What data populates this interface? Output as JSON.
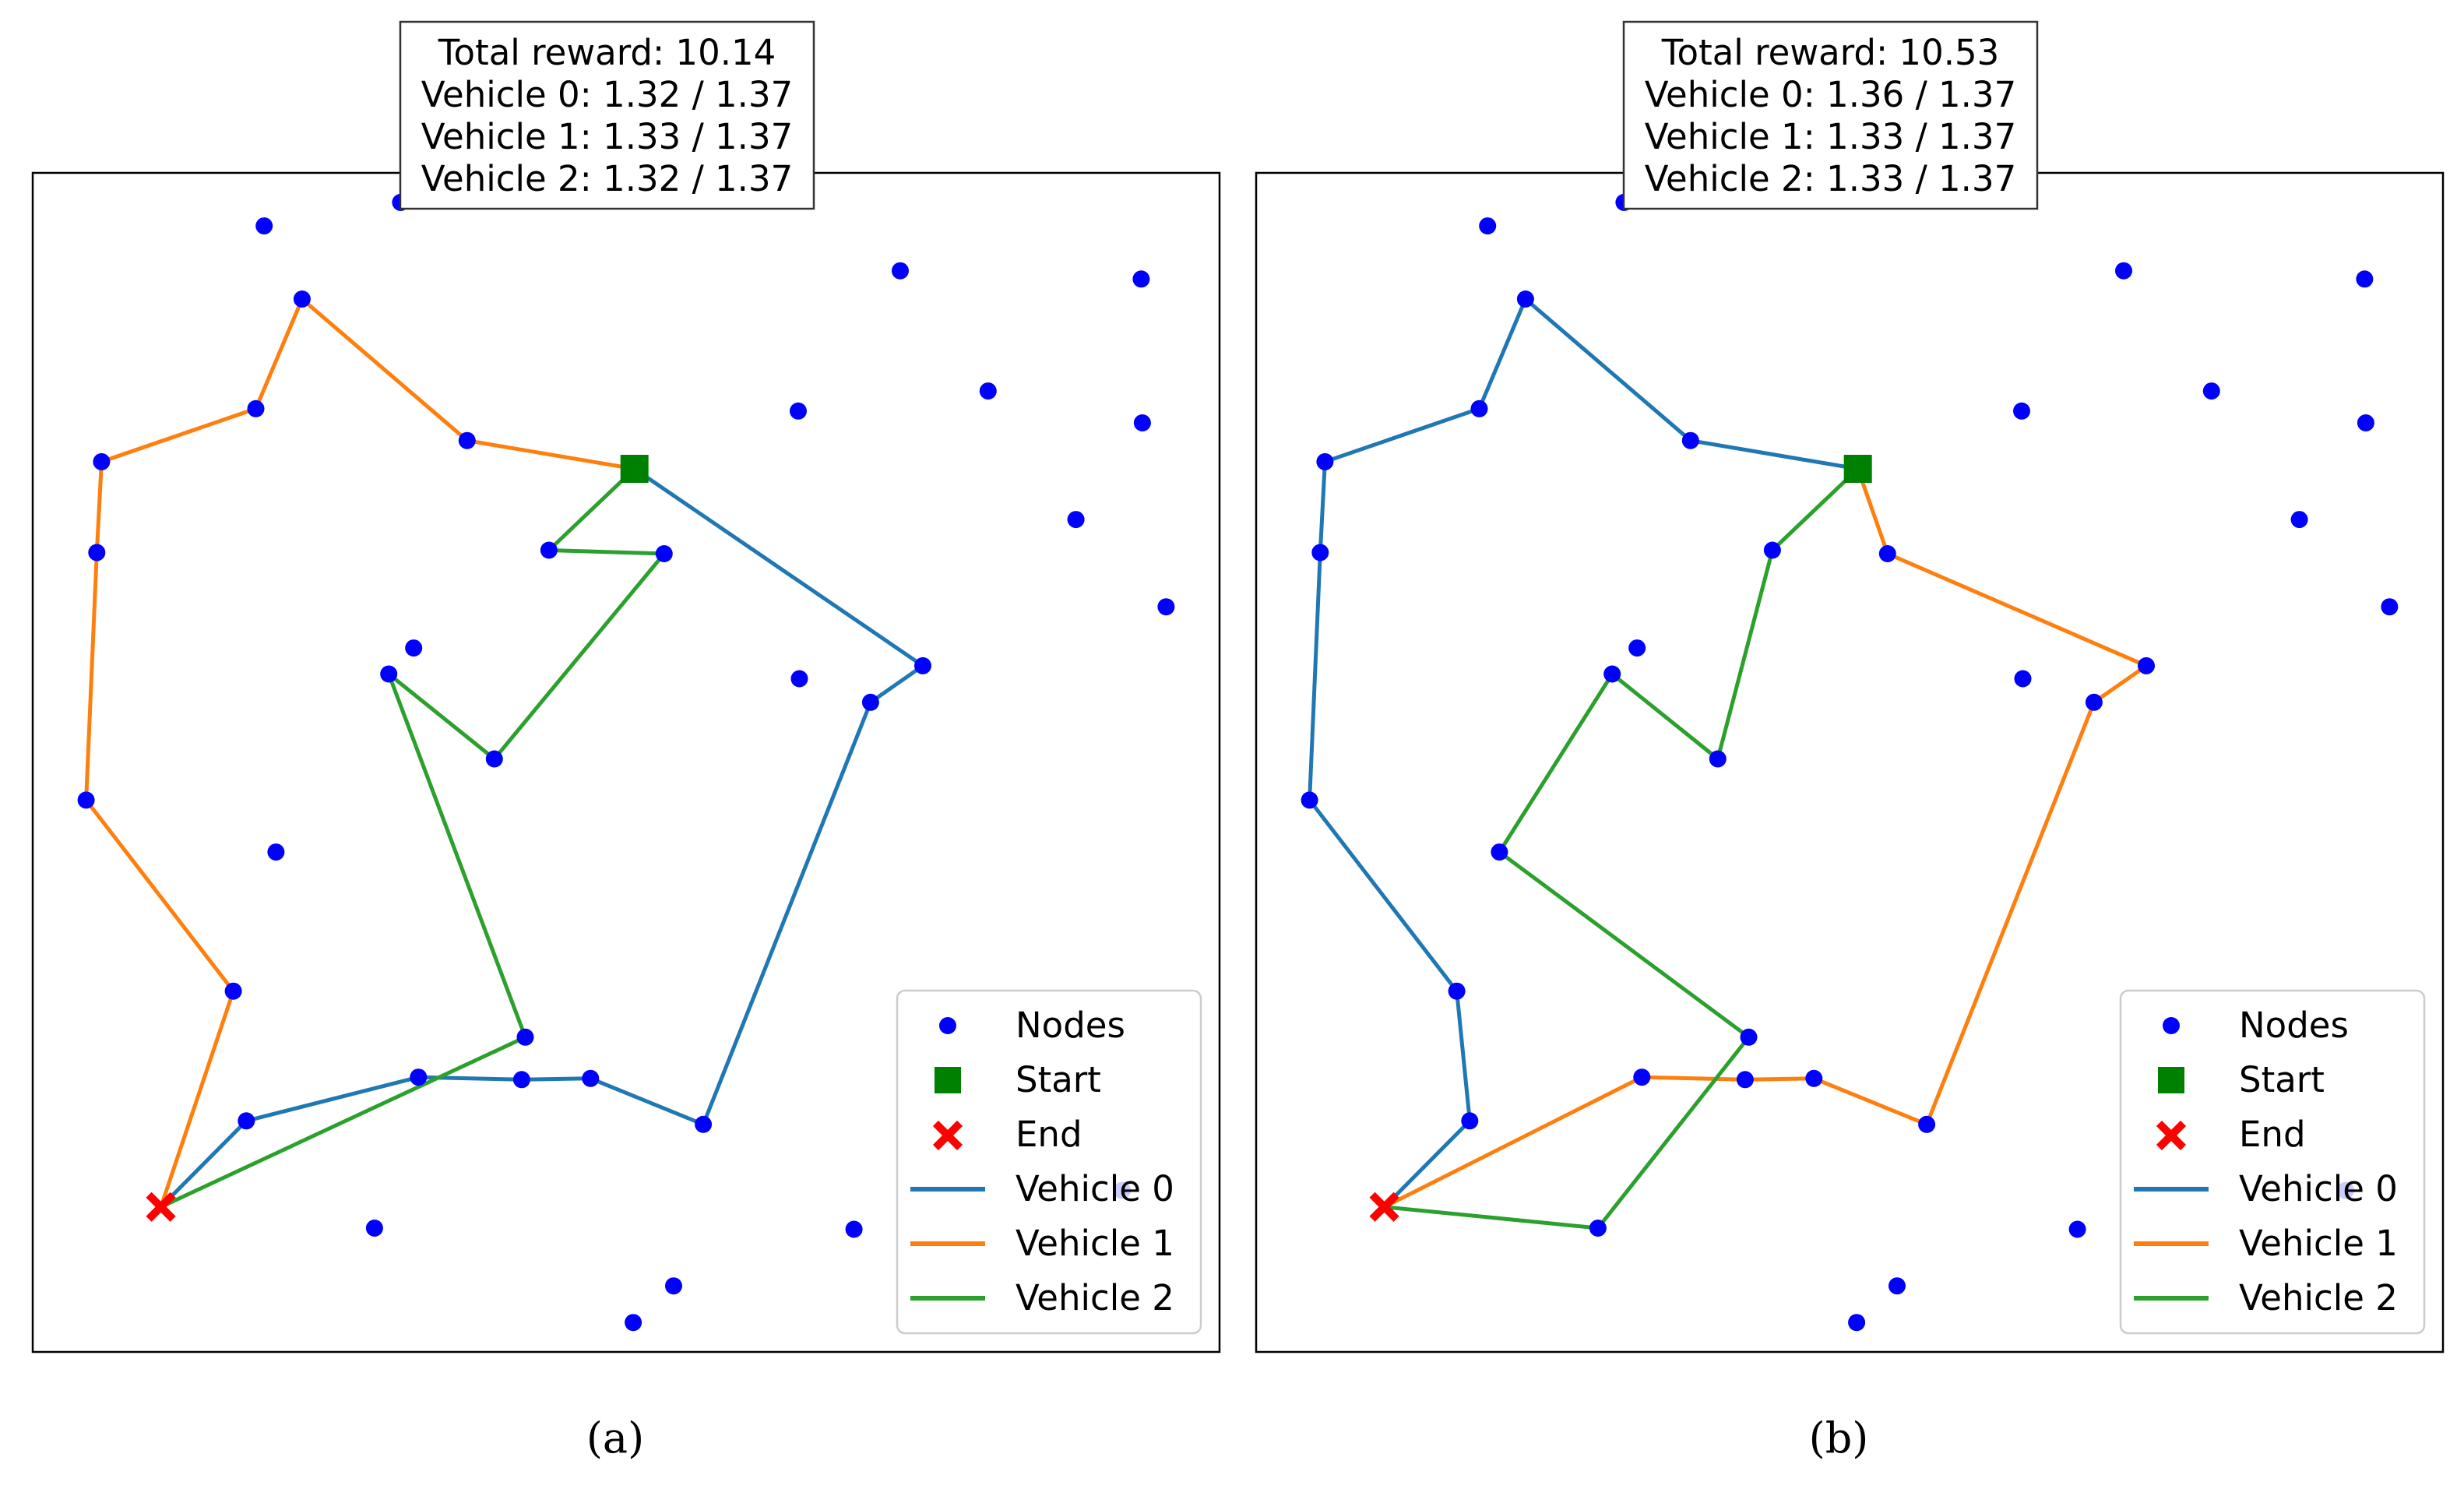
{
  "chart_data": [
    {
      "type": "scatter",
      "panel_label": "(a)",
      "info_box": [
        "Total reward: 10.14",
        "Vehicle 0: 1.32 / 1.37",
        "Vehicle 1: 1.33 / 1.37",
        "Vehicle 2: 1.32 / 1.37"
      ],
      "xlim": [
        0,
        1
      ],
      "ylim": [
        0,
        1
      ],
      "legend": [
        {
          "label": "Nodes",
          "kind": "node"
        },
        {
          "label": "Start",
          "kind": "start"
        },
        {
          "label": "End",
          "kind": "end"
        },
        {
          "label": "Vehicle 0",
          "kind": "line",
          "color": "#1f77b4"
        },
        {
          "label": "Vehicle 1",
          "kind": "line",
          "color": "#ff7f0e"
        },
        {
          "label": "Vehicle 2",
          "kind": "line",
          "color": "#2ca02c"
        }
      ],
      "legend_position": "lower right",
      "nodes": [
        [
          0.195,
          0.955
        ],
        [
          0.31,
          0.975
        ],
        [
          0.731,
          0.917
        ],
        [
          0.934,
          0.91
        ],
        [
          0.227,
          0.893
        ],
        [
          0.188,
          0.8
        ],
        [
          0.366,
          0.773
        ],
        [
          0.058,
          0.755
        ],
        [
          0.645,
          0.798
        ],
        [
          0.805,
          0.815
        ],
        [
          0.935,
          0.788
        ],
        [
          0.879,
          0.706
        ],
        [
          0.054,
          0.678
        ],
        [
          0.435,
          0.68
        ],
        [
          0.532,
          0.677
        ],
        [
          0.955,
          0.632
        ],
        [
          0.321,
          0.597
        ],
        [
          0.3,
          0.575
        ],
        [
          0.75,
          0.582
        ],
        [
          0.706,
          0.551
        ],
        [
          0.646,
          0.571
        ],
        [
          0.389,
          0.503
        ],
        [
          0.045,
          0.468
        ],
        [
          0.205,
          0.424
        ],
        [
          0.169,
          0.306
        ],
        [
          0.415,
          0.267
        ],
        [
          0.325,
          0.233
        ],
        [
          0.412,
          0.231
        ],
        [
          0.47,
          0.232
        ],
        [
          0.565,
          0.193
        ],
        [
          0.18,
          0.196
        ],
        [
          0.918,
          0.137
        ],
        [
          0.288,
          0.105
        ],
        [
          0.692,
          0.104
        ],
        [
          0.54,
          0.056
        ],
        [
          0.506,
          0.025
        ]
      ],
      "start": [
        0.507,
        0.749
      ],
      "end": [
        0.108,
        0.123
      ],
      "routes": [
        {
          "vehicle": "Vehicle 0",
          "color": "#1f77b4",
          "points": [
            [
              0.507,
              0.749
            ],
            [
              0.75,
              0.582
            ],
            [
              0.706,
              0.551
            ],
            [
              0.565,
              0.193
            ],
            [
              0.47,
              0.232
            ],
            [
              0.412,
              0.231
            ],
            [
              0.325,
              0.233
            ],
            [
              0.18,
              0.196
            ],
            [
              0.108,
              0.123
            ]
          ]
        },
        {
          "vehicle": "Vehicle 1",
          "color": "#ff7f0e",
          "points": [
            [
              0.507,
              0.749
            ],
            [
              0.366,
              0.773
            ],
            [
              0.227,
              0.893
            ],
            [
              0.188,
              0.8
            ],
            [
              0.058,
              0.755
            ],
            [
              0.054,
              0.678
            ],
            [
              0.045,
              0.468
            ],
            [
              0.169,
              0.306
            ],
            [
              0.108,
              0.123
            ]
          ]
        },
        {
          "vehicle": "Vehicle 2",
          "color": "#2ca02c",
          "points": [
            [
              0.507,
              0.749
            ],
            [
              0.435,
              0.68
            ],
            [
              0.532,
              0.677
            ],
            [
              0.389,
              0.503
            ],
            [
              0.3,
              0.575
            ],
            [
              0.415,
              0.267
            ],
            [
              0.108,
              0.123
            ]
          ]
        }
      ]
    },
    {
      "type": "scatter",
      "panel_label": "(b)",
      "info_box": [
        "Total reward: 10.53",
        "Vehicle 0: 1.36 / 1.37",
        "Vehicle 1: 1.33 / 1.37",
        "Vehicle 2: 1.33 / 1.37"
      ],
      "xlim": [
        0,
        1
      ],
      "ylim": [
        0,
        1
      ],
      "legend": [
        {
          "label": "Nodes",
          "kind": "node"
        },
        {
          "label": "Start",
          "kind": "start"
        },
        {
          "label": "End",
          "kind": "end"
        },
        {
          "label": "Vehicle 0",
          "kind": "line",
          "color": "#1f77b4"
        },
        {
          "label": "Vehicle 1",
          "kind": "line",
          "color": "#ff7f0e"
        },
        {
          "label": "Vehicle 2",
          "kind": "line",
          "color": "#2ca02c"
        }
      ],
      "legend_position": "lower right",
      "nodes": [
        [
          0.195,
          0.955
        ],
        [
          0.31,
          0.975
        ],
        [
          0.731,
          0.917
        ],
        [
          0.934,
          0.91
        ],
        [
          0.227,
          0.893
        ],
        [
          0.188,
          0.8
        ],
        [
          0.366,
          0.773
        ],
        [
          0.058,
          0.755
        ],
        [
          0.645,
          0.798
        ],
        [
          0.805,
          0.815
        ],
        [
          0.935,
          0.788
        ],
        [
          0.879,
          0.706
        ],
        [
          0.054,
          0.678
        ],
        [
          0.435,
          0.68
        ],
        [
          0.532,
          0.677
        ],
        [
          0.955,
          0.632
        ],
        [
          0.321,
          0.597
        ],
        [
          0.3,
          0.575
        ],
        [
          0.75,
          0.582
        ],
        [
          0.706,
          0.551
        ],
        [
          0.646,
          0.571
        ],
        [
          0.389,
          0.503
        ],
        [
          0.045,
          0.468
        ],
        [
          0.205,
          0.424
        ],
        [
          0.169,
          0.306
        ],
        [
          0.415,
          0.267
        ],
        [
          0.325,
          0.233
        ],
        [
          0.412,
          0.231
        ],
        [
          0.47,
          0.232
        ],
        [
          0.565,
          0.193
        ],
        [
          0.18,
          0.196
        ],
        [
          0.918,
          0.137
        ],
        [
          0.288,
          0.105
        ],
        [
          0.692,
          0.104
        ],
        [
          0.54,
          0.056
        ],
        [
          0.506,
          0.025
        ]
      ],
      "start": [
        0.507,
        0.749
      ],
      "end": [
        0.108,
        0.123
      ],
      "routes": [
        {
          "vehicle": "Vehicle 0",
          "color": "#1f77b4",
          "points": [
            [
              0.507,
              0.749
            ],
            [
              0.366,
              0.773
            ],
            [
              0.227,
              0.893
            ],
            [
              0.188,
              0.8
            ],
            [
              0.058,
              0.755
            ],
            [
              0.054,
              0.678
            ],
            [
              0.045,
              0.468
            ],
            [
              0.169,
              0.306
            ],
            [
              0.18,
              0.196
            ],
            [
              0.108,
              0.123
            ]
          ]
        },
        {
          "vehicle": "Vehicle 1",
          "color": "#ff7f0e",
          "points": [
            [
              0.507,
              0.749
            ],
            [
              0.532,
              0.677
            ],
            [
              0.75,
              0.582
            ],
            [
              0.706,
              0.551
            ],
            [
              0.565,
              0.193
            ],
            [
              0.47,
              0.232
            ],
            [
              0.412,
              0.231
            ],
            [
              0.325,
              0.233
            ],
            [
              0.108,
              0.123
            ]
          ]
        },
        {
          "vehicle": "Vehicle 2",
          "color": "#2ca02c",
          "points": [
            [
              0.507,
              0.749
            ],
            [
              0.435,
              0.68
            ],
            [
              0.389,
              0.503
            ],
            [
              0.3,
              0.575
            ],
            [
              0.205,
              0.424
            ],
            [
              0.415,
              0.267
            ],
            [
              0.288,
              0.105
            ],
            [
              0.108,
              0.123
            ]
          ]
        }
      ]
    }
  ]
}
